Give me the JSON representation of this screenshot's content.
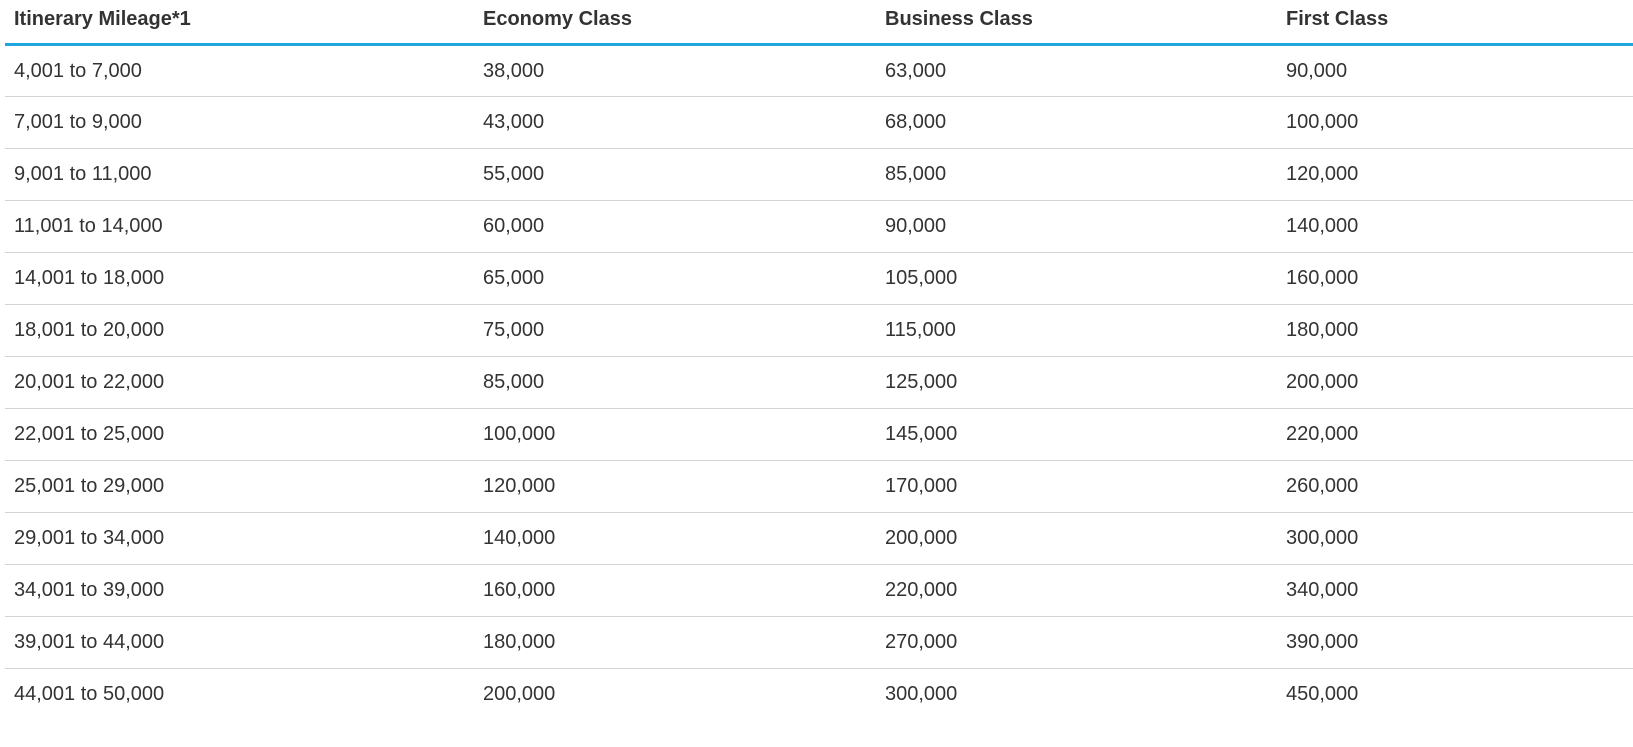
{
  "table": {
    "headers": [
      "Itinerary Mileage*1",
      "Economy Class",
      "Business Class",
      "First Class"
    ],
    "rows": [
      [
        "4,001 to 7,000",
        "38,000",
        "63,000",
        "90,000"
      ],
      [
        "7,001 to 9,000",
        "43,000",
        "68,000",
        "100,000"
      ],
      [
        "9,001 to 11,000",
        "55,000",
        "85,000",
        "120,000"
      ],
      [
        "11,001 to 14,000",
        "60,000",
        "90,000",
        "140,000"
      ],
      [
        "14,001 to 18,000",
        "65,000",
        "105,000",
        "160,000"
      ],
      [
        "18,001 to 20,000",
        "75,000",
        "115,000",
        "180,000"
      ],
      [
        "20,001 to 22,000",
        "85,000",
        "125,000",
        "200,000"
      ],
      [
        "22,001 to 25,000",
        "100,000",
        "145,000",
        "220,000"
      ],
      [
        "25,001 to 29,000",
        "120,000",
        "170,000",
        "260,000"
      ],
      [
        "29,001 to 34,000",
        "140,000",
        "200,000",
        "300,000"
      ],
      [
        "34,001 to 39,000",
        "160,000",
        "220,000",
        "340,000"
      ],
      [
        "39,001 to 44,000",
        "180,000",
        "270,000",
        "390,000"
      ],
      [
        "44,001 to 50,000",
        "200,000",
        "300,000",
        "450,000"
      ]
    ]
  },
  "colors": {
    "header_rule": "#1ea7dd",
    "row_divider": "#d4d4d4",
    "text": "#333333"
  }
}
